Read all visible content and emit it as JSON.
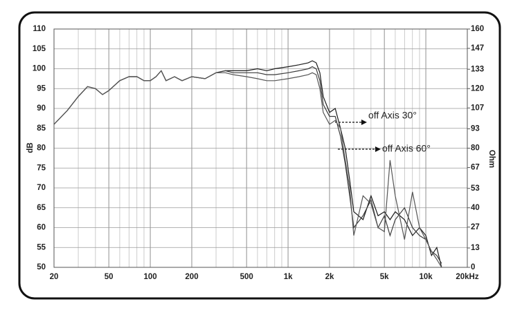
{
  "chart_data": {
    "type": "line",
    "xlabel": null,
    "ylabel": "dB",
    "y2label": "Ohm",
    "xscale": "log",
    "xlim": [
      20,
      20000
    ],
    "xticks": [
      20,
      50,
      100,
      200,
      500,
      {
        "value": 1000,
        "label": "1k"
      },
      {
        "value": 2000,
        "label": "2k"
      },
      {
        "value": 5000,
        "label": "5k"
      },
      {
        "value": 10000,
        "label": "10k"
      },
      {
        "value": 20000,
        "label": "20kHz"
      }
    ],
    "ylim": [
      50,
      110
    ],
    "yticks": [
      50,
      55,
      60,
      65,
      70,
      75,
      80,
      85,
      90,
      95,
      100,
      105,
      110
    ],
    "y2lim": [
      0,
      160
    ],
    "y2ticks": [
      0,
      13,
      27,
      40,
      53,
      67,
      80,
      93,
      107,
      120,
      133,
      147,
      160
    ],
    "grid": true,
    "annotations": [
      "off Axis 30°",
      "off Axis 60°"
    ],
    "x": [
      20,
      25,
      30,
      35,
      40,
      45,
      50,
      60,
      70,
      80,
      90,
      100,
      110,
      120,
      130,
      150,
      170,
      200,
      250,
      300,
      350,
      400,
      500,
      600,
      700,
      800,
      1000,
      1200,
      1400,
      1500,
      1600,
      1700,
      1800,
      2000,
      2200,
      2400,
      2600,
      2800,
      3000,
      3500,
      4000,
      4500,
      5000,
      5500,
      6000,
      7000,
      8000,
      9000,
      10000,
      11000,
      12000,
      13000
    ],
    "series": [
      {
        "color": "#1a1a1a",
        "values": [
          86,
          89.5,
          93,
          95.5,
          95,
          93.5,
          94.5,
          97,
          98,
          98,
          97,
          97,
          98,
          99.5,
          97,
          98,
          97,
          98,
          97.5,
          99,
          99.5,
          99.5,
          99.5,
          100,
          99.5,
          100,
          100.5,
          101,
          101.5,
          102,
          101.5,
          99,
          93,
          89,
          90,
          85,
          80,
          72,
          64,
          62,
          68,
          63,
          64,
          62,
          64,
          62,
          58,
          60,
          58,
          53,
          55,
          50
        ]
      },
      {
        "color": "#3a3a3a",
        "values": [
          86,
          89.5,
          93,
          95.5,
          95,
          93.5,
          94.5,
          97,
          98,
          98,
          97,
          97,
          98,
          99.5,
          97,
          98,
          97,
          98,
          97.5,
          99,
          99.5,
          99,
          99,
          99,
          98.5,
          98.5,
          99,
          99.5,
          100,
          100.5,
          100,
          97,
          91,
          88,
          88,
          83,
          76,
          68,
          60,
          63,
          67,
          60,
          63,
          58,
          62,
          65,
          60,
          58,
          57,
          54,
          53,
          51
        ]
      },
      {
        "color": "#555555",
        "values": [
          86,
          89.5,
          93,
          95.5,
          95,
          93.5,
          94.5,
          97,
          98,
          98,
          97,
          97,
          98,
          99.5,
          97,
          98,
          97,
          98,
          97.5,
          99,
          99,
          98.5,
          98,
          97.5,
          97,
          97,
          97.5,
          98,
          98.5,
          99,
          98.5,
          95,
          89,
          86,
          87,
          85,
          77,
          70,
          58,
          68,
          66,
          60,
          59,
          77,
          68,
          57,
          69,
          60,
          57,
          54,
          52,
          50
        ]
      }
    ]
  }
}
